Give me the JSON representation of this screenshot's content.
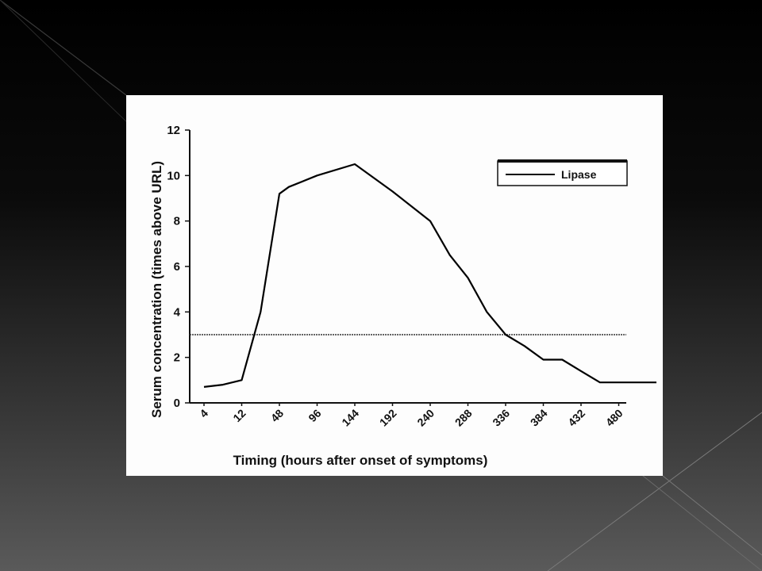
{
  "colors": {
    "slide_background_top": "#000000",
    "slide_background_bottom": "#5a5a5a",
    "chart_background": "#fdfdfd",
    "ink": "#111111"
  },
  "chart_data": {
    "type": "line",
    "title": "",
    "xlabel": "Timing (hours after onset of symptoms)",
    "ylabel": "Serum concentration (times above URL)",
    "x_tick_labels": [
      "4",
      "12",
      "48",
      "96",
      "144",
      "192",
      "240",
      "288",
      "336",
      "384",
      "432",
      "480"
    ],
    "y_tick_labels": [
      "0",
      "2",
      "4",
      "6",
      "8",
      "10",
      "12"
    ],
    "ylim": [
      0,
      12
    ],
    "grid": false,
    "legend": {
      "position": "top-right",
      "entries": [
        "Lipase"
      ]
    },
    "series": [
      {
        "name": "Lipase",
        "x": [
          4,
          8,
          12,
          30,
          48,
          60,
          96,
          144,
          192,
          240,
          265,
          288,
          312,
          336,
          360,
          384,
          408,
          432,
          456,
          480,
          504,
          528
        ],
        "y": [
          0.7,
          0.8,
          1.0,
          4.0,
          9.2,
          9.5,
          10.0,
          10.5,
          9.3,
          8.0,
          6.5,
          5.5,
          4.0,
          3.0,
          2.5,
          1.9,
          1.9,
          1.4,
          0.9,
          0.9,
          0.9,
          0.9
        ]
      }
    ],
    "reference_line": {
      "y": 3
    }
  }
}
